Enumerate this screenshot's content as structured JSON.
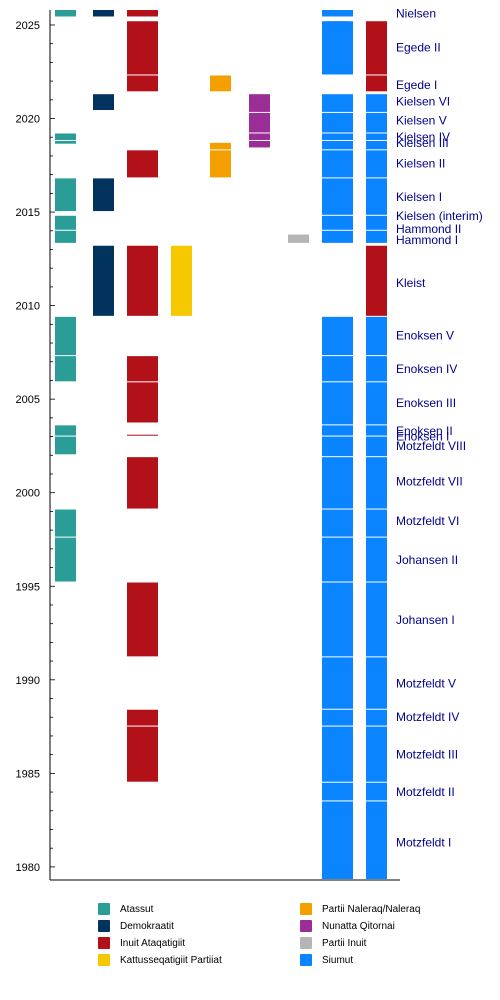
{
  "chart_data": {
    "type": "timeline",
    "title": "",
    "xlabel": "",
    "ylabel": "",
    "ylim": [
      1979.3,
      2025.8
    ],
    "y_ticks": [
      1980,
      1985,
      1990,
      1995,
      2000,
      2005,
      2010,
      2015,
      2020,
      2025
    ],
    "y_tick_labels": [
      "1980",
      "1985",
      "1990",
      "1995",
      "2000",
      "2005",
      "2010",
      "2015",
      "2020",
      "2025"
    ],
    "parties": [
      {
        "name": "Atassut",
        "color": "#2a9d96"
      },
      {
        "name": "Demokraatit",
        "color": "#02335f"
      },
      {
        "name": "Inuit Ataqatigiit",
        "color": "#b3111a"
      },
      {
        "name": "Kattusseqatigiit Partiiat",
        "color": "#f6c800"
      },
      {
        "name": "Partii Naleraq/Naleraq",
        "color": "#f49f00"
      },
      {
        "name": "Nunatta Qitornai",
        "color": "#9b2d96"
      },
      {
        "name": "Partii Inuit",
        "color": "#b5b5b5"
      },
      {
        "name": "Siumut",
        "color": "#0a84ff"
      }
    ],
    "series": [
      {
        "name": "Atassut",
        "segments": [
          [
            1995.2,
            1997.6
          ],
          [
            1997.6,
            1999.1
          ],
          [
            2002.0,
            2003.0
          ],
          [
            2003.0,
            2003.6
          ],
          [
            2005.9,
            2007.3
          ],
          [
            2007.3,
            2009.4
          ],
          [
            2013.3,
            2014.0
          ],
          [
            2014.0,
            2014.8
          ],
          [
            2015.0,
            2016.8
          ],
          [
            2018.6,
            2018.8
          ],
          [
            2018.8,
            2019.2
          ],
          [
            2025.4,
            2025.8
          ]
        ]
      },
      {
        "name": "Demokraatit",
        "segments": [
          [
            2009.4,
            2013.2
          ],
          [
            2015.0,
            2016.8
          ],
          [
            2020.4,
            2021.3
          ],
          [
            2025.4,
            2025.8
          ]
        ]
      },
      {
        "name": "Inuit Ataqatigiit",
        "segments": [
          [
            1984.5,
            1987.5
          ],
          [
            1987.5,
            1988.4
          ],
          [
            1991.2,
            1995.2
          ],
          [
            1999.1,
            2001.9
          ],
          [
            2003.0,
            2003.1
          ],
          [
            2003.7,
            2005.9
          ],
          [
            2005.9,
            2007.3
          ],
          [
            2009.4,
            2013.2
          ],
          [
            2016.8,
            2018.3
          ],
          [
            2021.4,
            2022.3
          ],
          [
            2022.3,
            2025.2
          ],
          [
            2025.4,
            2025.8
          ]
        ]
      },
      {
        "name": "Kattusseqatigiit Partiiat",
        "segments": [
          [
            2009.4,
            2013.2
          ]
        ]
      },
      {
        "name": "Partii Naleraq/Naleraq",
        "segments": [
          [
            2016.8,
            2018.3
          ],
          [
            2018.3,
            2018.7
          ],
          [
            2021.4,
            2022.3
          ]
        ]
      },
      {
        "name": "Nunatta Qitornai",
        "segments": [
          [
            2018.4,
            2018.8
          ],
          [
            2018.8,
            2019.2
          ],
          [
            2019.2,
            2020.3
          ],
          [
            2020.3,
            2021.3
          ]
        ]
      },
      {
        "name": "Partii Inuit",
        "segments": [
          [
            2013.3,
            2013.8
          ]
        ]
      },
      {
        "name": "Siumut",
        "segments": [
          [
            1979.3,
            1983.5
          ],
          [
            1983.5,
            1984.5
          ],
          [
            1984.5,
            1987.5
          ],
          [
            1987.5,
            1988.4
          ],
          [
            1988.4,
            1991.2
          ],
          [
            1991.2,
            1995.2
          ],
          [
            1995.2,
            1997.6
          ],
          [
            1997.6,
            1999.1
          ],
          [
            1999.1,
            2001.9
          ],
          [
            2001.9,
            2003.0
          ],
          [
            2003.0,
            2003.6
          ],
          [
            2003.6,
            2005.9
          ],
          [
            2005.9,
            2007.3
          ],
          [
            2007.3,
            2009.4
          ],
          [
            2013.3,
            2014.0
          ],
          [
            2014.0,
            2014.8
          ],
          [
            2014.8,
            2016.8
          ],
          [
            2016.8,
            2018.3
          ],
          [
            2018.3,
            2018.8
          ],
          [
            2018.8,
            2019.2
          ],
          [
            2019.2,
            2020.3
          ],
          [
            2020.3,
            2021.3
          ],
          [
            2022.3,
            2025.2
          ],
          [
            2025.4,
            2025.8
          ]
        ]
      },
      {
        "name": "Siumut",
        "segments": [
          [
            1979.3,
            1983.5
          ],
          [
            1983.5,
            1984.5
          ],
          [
            1984.5,
            1987.5
          ],
          [
            1987.5,
            1988.4
          ],
          [
            1988.4,
            1991.2
          ],
          [
            1991.2,
            1995.2
          ],
          [
            1995.2,
            1997.6
          ],
          [
            1997.6,
            1999.1
          ],
          [
            1999.1,
            2001.9
          ],
          [
            2001.9,
            2003.0
          ],
          [
            2003.0,
            2003.6
          ],
          [
            2003.6,
            2005.9
          ],
          [
            2005.9,
            2007.3
          ],
          [
            2007.3,
            2009.4
          ],
          [
            2013.3,
            2014.0
          ],
          [
            2014.0,
            2014.8
          ],
          [
            2014.8,
            2016.8
          ],
          [
            2016.8,
            2018.3
          ],
          [
            2018.3,
            2018.8
          ],
          [
            2018.8,
            2019.2
          ],
          [
            2019.2,
            2020.3
          ],
          [
            2020.3,
            2021.3
          ]
        ]
      }
    ],
    "cabinets": [
      {
        "label": "Motzfeldt I",
        "year": 1981.3
      },
      {
        "label": "Motzfeldt II",
        "year": 1984.0
      },
      {
        "label": "Motzfeldt III",
        "year": 1986.0
      },
      {
        "label": "Motzfeldt IV",
        "year": 1988.0
      },
      {
        "label": "Motzfeldt V",
        "year": 1989.8
      },
      {
        "label": "Johansen I",
        "year": 1993.2
      },
      {
        "label": "Johansen II",
        "year": 1996.4
      },
      {
        "label": "Motzfeldt VI",
        "year": 1998.5
      },
      {
        "label": "Motzfeldt VII",
        "year": 2000.6
      },
      {
        "label": "Motzfeldt VIII",
        "year": 2002.5
      },
      {
        "label": "Enoksen I",
        "year": 2003.0
      },
      {
        "label": "Enoksen II",
        "year": 2003.3
      },
      {
        "label": "Enoksen III",
        "year": 2004.8
      },
      {
        "label": "Enoksen IV",
        "year": 2006.6
      },
      {
        "label": "Enoksen V",
        "year": 2008.4
      },
      {
        "label": "Kleist",
        "year": 2011.2
      },
      {
        "label": "Hammond I",
        "year": 2013.5
      },
      {
        "label": "Hammond II",
        "year": 2014.1
      },
      {
        "label": "Kielsen (interim)",
        "year": 2014.8
      },
      {
        "label": "Kielsen I",
        "year": 2015.8
      },
      {
        "label": "Kielsen II",
        "year": 2017.6
      },
      {
        "label": "Kielsen III",
        "year": 2018.7
      },
      {
        "label": "Kielsen IV",
        "year": 2019.0
      },
      {
        "label": "Kielsen V",
        "year": 2019.9
      },
      {
        "label": "Kielsen VI",
        "year": 2020.9
      },
      {
        "label": "Egede I",
        "year": 2021.8
      },
      {
        "label": "Egede II",
        "year": 2023.8
      },
      {
        "label": "Nielsen",
        "year": 2025.6
      }
    ]
  }
}
